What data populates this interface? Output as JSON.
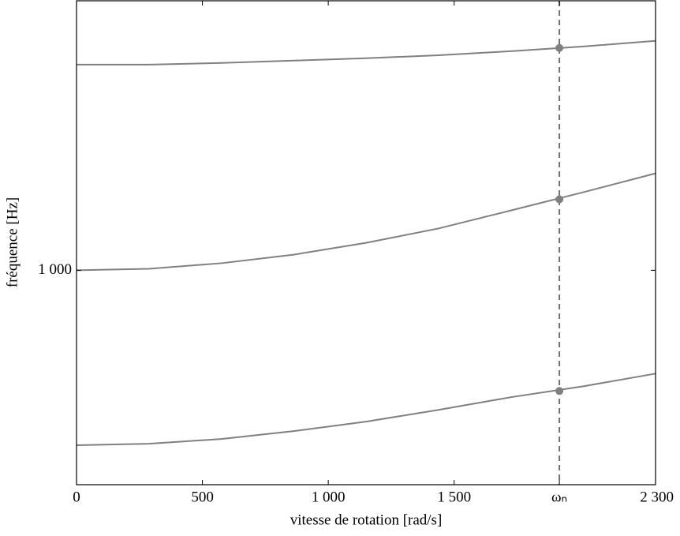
{
  "chart_data": {
    "type": "line",
    "x_label": "vitesse de rotation [rad/s]",
    "y_label": "fréquence [Hz]",
    "x": [
      0,
      287.5,
      575,
      862.5,
      1150,
      1437.5,
      1725,
      2012.5,
      2300
    ],
    "series": [
      {
        "color": "#808080",
        "values": [
          184,
          191,
          213,
          250,
          294,
          349,
          408,
          459,
          518
        ]
      },
      {
        "color": "#808080",
        "values": [
          1000,
          1007,
          1033,
          1073,
          1128,
          1195,
          1279,
          1364,
          1452
        ]
      },
      {
        "color": "#808080",
        "values": [
          1959,
          1959,
          1967,
          1978,
          1989,
          2003,
          2022,
          2044,
          2070
        ]
      }
    ],
    "markers": [
      437,
      1331,
      2037
    ],
    "xlim": [
      0,
      2300
    ],
    "ylim": [
      0,
      2257
    ],
    "xticks": [
      0,
      500,
      {
        "value": 1000,
        "label": "1 000"
      },
      {
        "value": 1500,
        "label": "1 500"
      },
      {
        "value": 1918,
        "label": "ωₙ"
      },
      {
        "value": 2300,
        "label": "2 300"
      }
    ],
    "yticks": [
      {
        "value": 1000,
        "label": "1 000"
      }
    ],
    "vline_tick": 4
  }
}
